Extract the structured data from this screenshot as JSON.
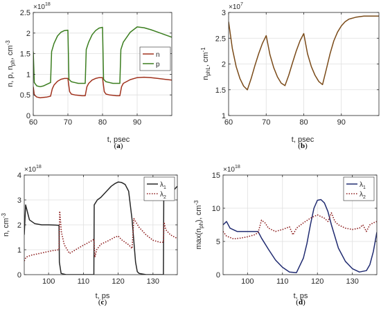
{
  "chart_data": [
    {
      "type": "line",
      "caption_pre": "(",
      "caption_letter": "a",
      "caption_post": ")",
      "xlabel": "t, psec",
      "ylabel_parts": [
        "n, p, n",
        "ph",
        ", cm",
        "-3"
      ],
      "exponent_base": "×10",
      "exponent_power": "18",
      "xlim": [
        60,
        100
      ],
      "ylim": [
        0,
        2.5
      ],
      "xticks": [
        60,
        70,
        80,
        90
      ],
      "yticks": [
        0,
        0.5,
        1,
        1.5,
        2,
        2.5
      ],
      "ytick_labels": [
        "0",
        "0.5",
        "1",
        "1.5",
        "2",
        "2.5"
      ],
      "grid": true,
      "legend": "right",
      "series": [
        {
          "name": "n",
          "color": "#a0311c",
          "style": "solid",
          "x": [
            60,
            60.3,
            61,
            62,
            63,
            64,
            65,
            65.5,
            66,
            67,
            68,
            69,
            70,
            70.5,
            71,
            72,
            73,
            74,
            75,
            75.5,
            76,
            77,
            78,
            79,
            80,
            80.5,
            81,
            82,
            83,
            84,
            85,
            85.5,
            86,
            88,
            90,
            92,
            94,
            96,
            98,
            100
          ],
          "y": [
            0.7,
            0.5,
            0.45,
            0.43,
            0.44,
            0.45,
            0.47,
            0.65,
            0.74,
            0.83,
            0.88,
            0.9,
            0.9,
            0.58,
            0.52,
            0.5,
            0.49,
            0.48,
            0.48,
            0.7,
            0.78,
            0.86,
            0.9,
            0.92,
            0.92,
            0.58,
            0.52,
            0.5,
            0.49,
            0.48,
            0.48,
            0.7,
            0.78,
            0.87,
            0.92,
            0.93,
            0.92,
            0.9,
            0.88,
            0.86
          ]
        },
        {
          "name": "p",
          "color": "#3a7d1e",
          "style": "solid",
          "x": [
            60,
            60.3,
            61,
            62,
            63,
            64,
            65,
            65.3,
            66,
            67,
            68,
            69,
            70,
            70.3,
            71,
            72,
            73,
            74,
            75,
            75.3,
            76,
            77,
            78,
            79,
            80,
            80.3,
            81,
            82,
            83,
            84,
            85,
            85.3,
            86,
            88,
            90,
            92,
            94,
            96,
            98,
            100
          ],
          "y": [
            1.55,
            0.8,
            0.72,
            0.7,
            0.72,
            0.76,
            0.8,
            1.55,
            1.75,
            1.93,
            2.02,
            2.06,
            2.07,
            0.88,
            0.82,
            0.8,
            0.78,
            0.78,
            0.78,
            1.6,
            1.78,
            1.96,
            2.06,
            2.12,
            2.14,
            0.88,
            0.82,
            0.8,
            0.78,
            0.78,
            0.78,
            1.6,
            1.78,
            2.02,
            2.15,
            2.13,
            2.08,
            2.02,
            1.96,
            1.9
          ]
        }
      ]
    },
    {
      "type": "line",
      "caption_pre": "(",
      "caption_letter": "b",
      "caption_post": ")",
      "xlabel": "t, psec",
      "ylabel_parts": [
        "n",
        "phL",
        ", cm",
        "-1"
      ],
      "exponent_base": "×10",
      "exponent_power": "7",
      "xlim": [
        60,
        100
      ],
      "ylim": [
        1,
        3
      ],
      "xticks": [
        60,
        70,
        80,
        90
      ],
      "yticks": [
        1,
        1.5,
        2,
        2.5,
        3
      ],
      "ytick_labels": [
        "1",
        "1.5",
        "2",
        "2.5",
        "3"
      ],
      "grid": true,
      "legend": "none",
      "series": [
        {
          "color": "#7a4a18",
          "style": "solid",
          "x": [
            60,
            61,
            62,
            63,
            64,
            65,
            66,
            67,
            68,
            69,
            70,
            71,
            72,
            73,
            74,
            75,
            76,
            77,
            78,
            79,
            80,
            81,
            82,
            83,
            84,
            85,
            86,
            87,
            88,
            89,
            90,
            91,
            92,
            94,
            96,
            98,
            100
          ],
          "y": [
            2.82,
            2.3,
            1.95,
            1.72,
            1.57,
            1.5,
            1.72,
            1.97,
            2.2,
            2.4,
            2.55,
            2.18,
            1.93,
            1.75,
            1.63,
            1.58,
            1.78,
            2.02,
            2.25,
            2.45,
            2.59,
            2.2,
            1.95,
            1.78,
            1.66,
            1.6,
            1.9,
            2.2,
            2.45,
            2.62,
            2.74,
            2.82,
            2.87,
            2.91,
            2.93,
            2.93,
            2.93
          ]
        }
      ]
    },
    {
      "type": "line",
      "caption_pre": "(",
      "caption_letter": "c",
      "caption_post": ")",
      "xlabel": "t, ps",
      "ylabel_parts": [
        "n, cm",
        "-3"
      ],
      "exponent_base": "×10",
      "exponent_power": "18",
      "xlim": [
        93,
        137
      ],
      "ylim": [
        0,
        4
      ],
      "xticks": [
        100,
        110,
        120,
        130
      ],
      "yticks": [
        0,
        1,
        2,
        3,
        4
      ],
      "ytick_labels": [
        "0",
        "1",
        "2",
        "3",
        "4"
      ],
      "grid": true,
      "legend": "top-right",
      "series": [
        {
          "name_sym": "λ",
          "name_sub": "1",
          "color": "#262626",
          "style": "solid",
          "x": [
            93,
            93.4,
            94.5,
            96,
            98,
            100,
            102,
            103,
            103.1,
            103.6,
            105,
            108,
            110,
            112,
            113,
            113.1,
            114,
            115,
            116,
            117,
            118,
            119,
            120,
            121,
            122,
            123,
            124,
            125,
            125.5,
            126,
            128,
            130,
            132,
            133,
            133.1,
            134,
            135,
            136,
            137
          ],
          "y": [
            1.6,
            2.8,
            2.2,
            2.05,
            2.0,
            2.0,
            1.99,
            1.98,
            0.5,
            0.05,
            0.0,
            0.0,
            0.0,
            0.0,
            0.0,
            2.8,
            3.0,
            3.1,
            3.25,
            3.4,
            3.55,
            3.65,
            3.72,
            3.7,
            3.62,
            3.35,
            2.2,
            0.5,
            0.12,
            0.05,
            0.0,
            0.0,
            0.0,
            0.0,
            3.0,
            3.1,
            3.2,
            3.4,
            3.55
          ]
        },
        {
          "name_sym": "λ",
          "name_sub": "2",
          "color": "#8b1a1a",
          "style": "dotted",
          "x": [
            93,
            93.5,
            95,
            97,
            99,
            101,
            103,
            103.2,
            103.7,
            104.5,
            106,
            108,
            110,
            112,
            113,
            113.3,
            113.8,
            115,
            117,
            119,
            120,
            121,
            123,
            124,
            124.5,
            126,
            128,
            130,
            132,
            133,
            133.2,
            133.7,
            135,
            137
          ],
          "y": [
            0.55,
            0.7,
            0.78,
            0.84,
            0.9,
            0.96,
            1.0,
            2.55,
            1.7,
            1.2,
            0.85,
            1.02,
            1.18,
            1.33,
            1.42,
            0.7,
            1.0,
            1.22,
            1.35,
            1.5,
            1.55,
            1.4,
            1.2,
            1.05,
            2.25,
            1.9,
            1.6,
            1.38,
            1.3,
            1.3,
            2.1,
            1.8,
            1.6,
            1.45
          ]
        }
      ]
    },
    {
      "type": "line",
      "caption_pre": "(",
      "caption_letter": "d",
      "caption_post": ")",
      "xlabel": "t, ps",
      "ylabel_parts": [
        "max(n",
        "ph",
        "), cm",
        "-3"
      ],
      "exponent_base": "×10",
      "exponent_power": "18",
      "xlim": [
        93,
        137
      ],
      "ylim": [
        0,
        15
      ],
      "xticks": [
        100,
        110,
        120,
        130
      ],
      "yticks": [
        0,
        5,
        10,
        15
      ],
      "ytick_labels": [
        "0",
        "5",
        "10",
        "15"
      ],
      "grid": true,
      "legend": "top-right",
      "series": [
        {
          "name_sym": "λ",
          "name_sub": "1",
          "color": "#1f2a70",
          "style": "solid",
          "x": [
            93,
            94,
            95,
            97,
            99,
            101,
            103,
            104,
            106,
            108,
            110,
            112,
            114,
            116,
            117,
            118,
            119,
            120,
            121,
            122,
            123,
            124,
            126,
            128,
            130,
            132,
            134,
            135,
            136,
            137
          ],
          "y": [
            7.5,
            8.0,
            7.0,
            6.5,
            6.5,
            6.5,
            6.5,
            5.5,
            3.8,
            2.2,
            1.1,
            0.4,
            0.3,
            2.5,
            4.7,
            7.5,
            10.0,
            11.2,
            11.3,
            10.8,
            9.5,
            7.5,
            4.0,
            2.0,
            0.9,
            0.4,
            0.6,
            1.5,
            3.5,
            6.4
          ]
        },
        {
          "name_sym": "λ",
          "name_sub": "2",
          "color": "#8b1a1a",
          "style": "dotted",
          "x": [
            93,
            94,
            96,
            98,
            100,
            102,
            103,
            104,
            105,
            106,
            108,
            110,
            112,
            113,
            114,
            116,
            118,
            120,
            122,
            123,
            124,
            125,
            126,
            128,
            130,
            132,
            133,
            134,
            135,
            136,
            137
          ],
          "y": [
            6.5,
            5.8,
            5.4,
            5.5,
            5.7,
            6.0,
            6.3,
            8.2,
            7.8,
            7.0,
            6.5,
            6.8,
            7.2,
            6.0,
            7.0,
            7.8,
            8.5,
            9.0,
            8.5,
            8.0,
            9.3,
            8.0,
            7.5,
            7.0,
            6.8,
            7.0,
            7.5,
            6.5,
            7.5,
            7.8,
            8.0
          ]
        }
      ]
    }
  ]
}
